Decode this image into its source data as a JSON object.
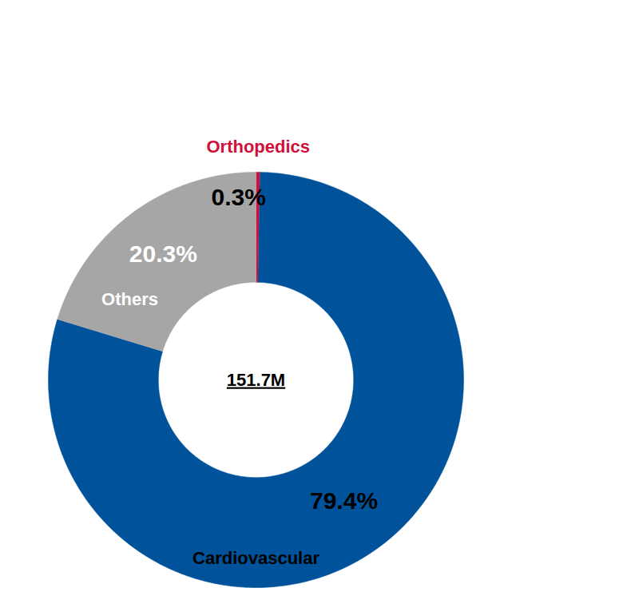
{
  "chart_data": {
    "type": "donut",
    "center_label": "151.7M",
    "categories": [
      "Orthopedics",
      "Cardiovascular",
      "Others"
    ],
    "values": [
      0.3,
      79.4,
      20.3
    ],
    "value_labels": [
      "0.3%",
      "79.4%",
      "20.3%"
    ],
    "colors": [
      "#d0103a",
      "#00539b",
      "#a6a6a6"
    ],
    "data_labels": true
  }
}
